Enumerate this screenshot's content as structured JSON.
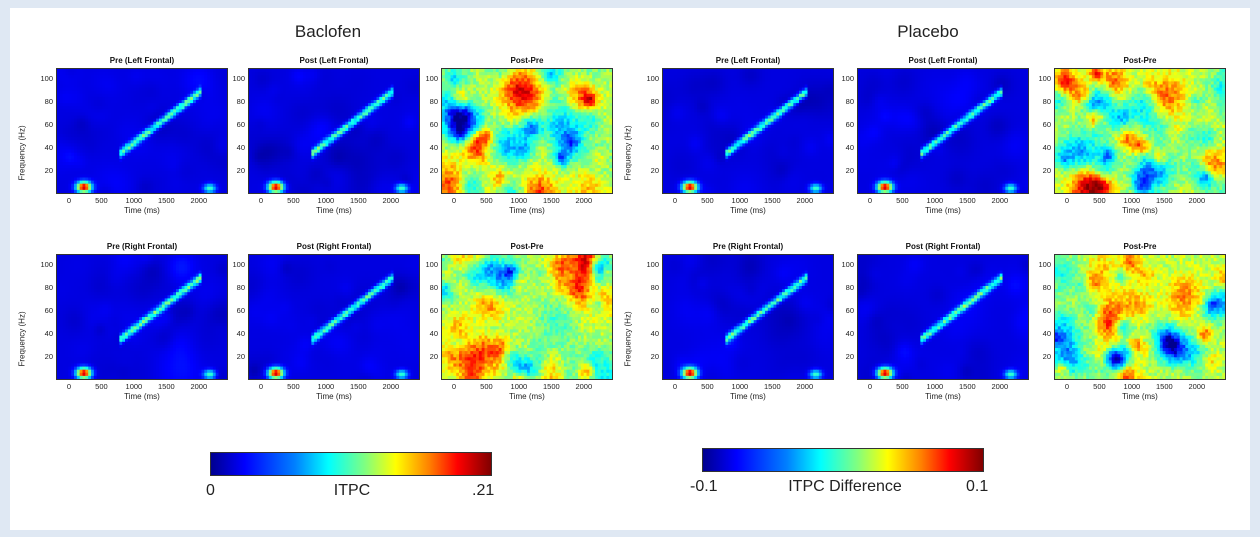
{
  "groups": [
    {
      "title": "Baclofen"
    },
    {
      "title": "Placebo"
    }
  ],
  "colorbars": [
    {
      "min_label": "0",
      "mid_label": "ITPC",
      "max_label": ".21"
    },
    {
      "min_label": "-0.1",
      "mid_label": "ITPC Difference",
      "max_label": "0.1"
    }
  ],
  "chart_data": [
    {
      "type": "heatmap",
      "group": "Baclofen",
      "title": "Pre (Left Frontal)",
      "xlabel": "Time (ms)",
      "ylabel": "Frequency (Hz)",
      "xticks": [
        "0",
        "500",
        "1000",
        "1500",
        "2000"
      ],
      "yticks": [
        "100",
        "80",
        "60",
        "40",
        "20"
      ],
      "xlim": [
        -200,
        2450
      ],
      "ylim": [
        0,
        110
      ],
      "colorscale": [
        0,
        0.21
      ],
      "pattern": "itpc",
      "seed": 11
    },
    {
      "type": "heatmap",
      "group": "Baclofen",
      "title": "Post (Left Frontal)",
      "xlabel": "Time (ms)",
      "ylabel": "",
      "xticks": [
        "0",
        "500",
        "1000",
        "1500",
        "2000"
      ],
      "yticks": [
        "100",
        "80",
        "60",
        "40",
        "20"
      ],
      "xlim": [
        -200,
        2450
      ],
      "ylim": [
        0,
        110
      ],
      "colorscale": [
        0,
        0.21
      ],
      "pattern": "itpc",
      "seed": 23
    },
    {
      "type": "heatmap",
      "group": "Baclofen",
      "title": "Post-Pre",
      "xlabel": "Time (ms)",
      "ylabel": "",
      "xticks": [
        "0",
        "500",
        "1000",
        "1500",
        "2000"
      ],
      "yticks": [
        "100",
        "80",
        "60",
        "40",
        "20"
      ],
      "xlim": [
        -200,
        2450
      ],
      "ylim": [
        0,
        110
      ],
      "colorscale": [
        -0.1,
        0.1
      ],
      "pattern": "diff",
      "seed": 37
    },
    {
      "type": "heatmap",
      "group": "Placebo",
      "title": "Pre (Left Frontal)",
      "xlabel": "Time (ms)",
      "ylabel": "Frequency (Hz)",
      "xticks": [
        "0",
        "500",
        "1000",
        "1500",
        "2000"
      ],
      "yticks": [
        "100",
        "80",
        "60",
        "40",
        "20"
      ],
      "xlim": [
        -200,
        2450
      ],
      "ylim": [
        0,
        110
      ],
      "colorscale": [
        0,
        0.21
      ],
      "pattern": "itpc",
      "seed": 41
    },
    {
      "type": "heatmap",
      "group": "Placebo",
      "title": "Post (Left Frontal)",
      "xlabel": "Time (ms)",
      "ylabel": "",
      "xticks": [
        "0",
        "500",
        "1000",
        "1500",
        "2000"
      ],
      "yticks": [
        "100",
        "80",
        "60",
        "40",
        "20"
      ],
      "xlim": [
        -200,
        2450
      ],
      "ylim": [
        0,
        110
      ],
      "colorscale": [
        0,
        0.21
      ],
      "pattern": "itpc",
      "seed": 53
    },
    {
      "type": "heatmap",
      "group": "Placebo",
      "title": "Post-Pre",
      "xlabel": "Time (ms)",
      "ylabel": "",
      "xticks": [
        "0",
        "500",
        "1000",
        "1500",
        "2000"
      ],
      "yticks": [
        "100",
        "80",
        "60",
        "40",
        "20"
      ],
      "xlim": [
        -200,
        2450
      ],
      "ylim": [
        0,
        110
      ],
      "colorscale": [
        -0.1,
        0.1
      ],
      "pattern": "diff",
      "seed": 67
    },
    {
      "type": "heatmap",
      "group": "Baclofen",
      "title": "Pre (Right Frontal)",
      "xlabel": "Time (ms)",
      "ylabel": "Frequency (Hz)",
      "xticks": [
        "0",
        "500",
        "1000",
        "1500",
        "2000"
      ],
      "yticks": [
        "100",
        "80",
        "60",
        "40",
        "20"
      ],
      "xlim": [
        -200,
        2450
      ],
      "ylim": [
        0,
        110
      ],
      "colorscale": [
        0,
        0.21
      ],
      "pattern": "itpc",
      "seed": 71
    },
    {
      "type": "heatmap",
      "group": "Baclofen",
      "title": "Post (Right Frontal)",
      "xlabel": "Time (ms)",
      "ylabel": "",
      "xticks": [
        "0",
        "500",
        "1000",
        "1500",
        "2000"
      ],
      "yticks": [
        "100",
        "80",
        "60",
        "40",
        "20"
      ],
      "xlim": [
        -200,
        2450
      ],
      "ylim": [
        0,
        110
      ],
      "colorscale": [
        0,
        0.21
      ],
      "pattern": "itpc",
      "seed": 83
    },
    {
      "type": "heatmap",
      "group": "Baclofen",
      "title": "Post-Pre",
      "xlabel": "Time (ms)",
      "ylabel": "",
      "xticks": [
        "0",
        "500",
        "1000",
        "1500",
        "2000"
      ],
      "yticks": [
        "100",
        "80",
        "60",
        "40",
        "20"
      ],
      "xlim": [
        -200,
        2450
      ],
      "ylim": [
        0,
        110
      ],
      "colorscale": [
        -0.1,
        0.1
      ],
      "pattern": "diff",
      "seed": 97
    },
    {
      "type": "heatmap",
      "group": "Placebo",
      "title": "Pre (Right Frontal)",
      "xlabel": "Time (ms)",
      "ylabel": "Frequency (Hz)",
      "xticks": [
        "0",
        "500",
        "1000",
        "1500",
        "2000"
      ],
      "yticks": [
        "100",
        "80",
        "60",
        "40",
        "20"
      ],
      "xlim": [
        -200,
        2450
      ],
      "ylim": [
        0,
        110
      ],
      "colorscale": [
        0,
        0.21
      ],
      "pattern": "itpc",
      "seed": 101
    },
    {
      "type": "heatmap",
      "group": "Placebo",
      "title": "Post (Right Frontal)",
      "xlabel": "Time (ms)",
      "ylabel": "",
      "xticks": [
        "0",
        "500",
        "1000",
        "1500",
        "2000"
      ],
      "yticks": [
        "100",
        "80",
        "60",
        "40",
        "20"
      ],
      "xlim": [
        -200,
        2450
      ],
      "ylim": [
        0,
        110
      ],
      "colorscale": [
        0,
        0.21
      ],
      "pattern": "itpc",
      "seed": 113
    },
    {
      "type": "heatmap",
      "group": "Placebo",
      "title": "Post-Pre",
      "xlabel": "Time (ms)",
      "ylabel": "",
      "xticks": [
        "0",
        "500",
        "1000",
        "1500",
        "2000"
      ],
      "yticks": [
        "100",
        "80",
        "60",
        "40",
        "20"
      ],
      "xlim": [
        -200,
        2450
      ],
      "ylim": [
        0,
        110
      ],
      "colorscale": [
        -0.1,
        0.1
      ],
      "pattern": "diff",
      "seed": 127
    }
  ]
}
